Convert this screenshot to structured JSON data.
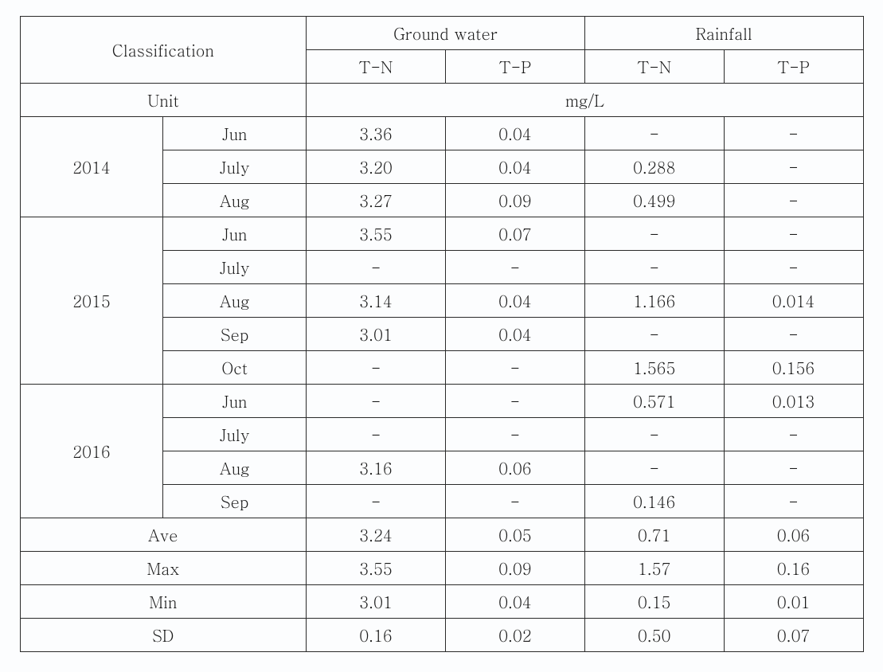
{
  "header": {
    "classification": "Classification",
    "ground_water": "Ground water",
    "rainfall": "Rainfall",
    "tn": "T-N",
    "tp": "T-P",
    "unit": "Unit",
    "unit_value": "mg/L"
  },
  "groups": [
    {
      "label": "2014",
      "rows": [
        {
          "month": "Jun",
          "gw_tn": "3.36",
          "gw_tp": "0.04",
          "rf_tn": "-",
          "rf_tp": "-"
        },
        {
          "month": "July",
          "gw_tn": "3.20",
          "gw_tp": "0.04",
          "rf_tn": "0.288",
          "rf_tp": "-"
        },
        {
          "month": "Aug",
          "gw_tn": "3.27",
          "gw_tp": "0.09",
          "rf_tn": "0.499",
          "rf_tp": "-"
        }
      ]
    },
    {
      "label": "2015",
      "rows": [
        {
          "month": "Jun",
          "gw_tn": "3.55",
          "gw_tp": "0.07",
          "rf_tn": "-",
          "rf_tp": "-"
        },
        {
          "month": "July",
          "gw_tn": "-",
          "gw_tp": "-",
          "rf_tn": "-",
          "rf_tp": "-"
        },
        {
          "month": "Aug",
          "gw_tn": "3.14",
          "gw_tp": "0.04",
          "rf_tn": "1.166",
          "rf_tp": "0.014"
        },
        {
          "month": "Sep",
          "gw_tn": "3.01",
          "gw_tp": "0.04",
          "rf_tn": "-",
          "rf_tp": "-"
        },
        {
          "month": "Oct",
          "gw_tn": "-",
          "gw_tp": "-",
          "rf_tn": "1.565",
          "rf_tp": "0.156"
        }
      ]
    },
    {
      "label": "2016",
      "rows": [
        {
          "month": "Jun",
          "gw_tn": "-",
          "gw_tp": "-",
          "rf_tn": "0.571",
          "rf_tp": "0.013"
        },
        {
          "month": "July",
          "gw_tn": "-",
          "gw_tp": "-",
          "rf_tn": "-",
          "rf_tp": "-"
        },
        {
          "month": "Aug",
          "gw_tn": "3.16",
          "gw_tp": "0.06",
          "rf_tn": "-",
          "rf_tp": "-"
        },
        {
          "month": "Sep",
          "gw_tn": "-",
          "gw_tp": "-",
          "rf_tn": "0.146",
          "rf_tp": "-"
        }
      ]
    }
  ],
  "summary": [
    {
      "label": "Ave",
      "gw_tn": "3.24",
      "gw_tp": "0.05",
      "rf_tn": "0.71",
      "rf_tp": "0.06"
    },
    {
      "label": "Max",
      "gw_tn": "3.55",
      "gw_tp": "0.09",
      "rf_tn": "1.57",
      "rf_tp": "0.16"
    },
    {
      "label": "Min",
      "gw_tn": "3.01",
      "gw_tp": "0.04",
      "rf_tn": "0.15",
      "rf_tp": "0.01"
    },
    {
      "label": "SD",
      "gw_tn": "0.16",
      "gw_tp": "0.02",
      "rf_tn": "0.50",
      "rf_tp": "0.07"
    }
  ]
}
